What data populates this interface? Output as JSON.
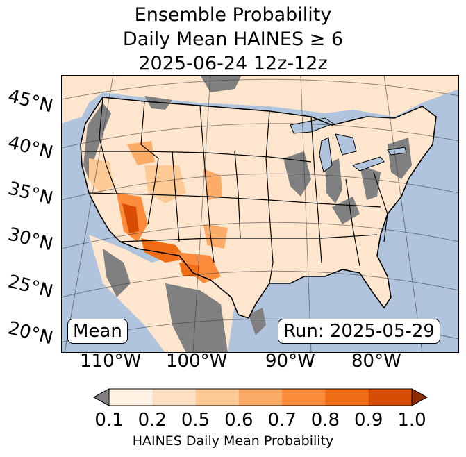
{
  "title": {
    "line1": "Ensemble Probability",
    "line2": "Daily Mean HAINES ≥ 6",
    "line3": "2025-06-24 12z-12z"
  },
  "lat_labels": [
    "45°N",
    "40°N",
    "35°N",
    "30°N",
    "25°N",
    "20°N"
  ],
  "lon_labels": [
    "110°W",
    "100°W",
    "90°W",
    "80°W"
  ],
  "stat_label": "Mean",
  "run_label": "Run: 2025-05-29",
  "colorbar": {
    "ticks": [
      "0.1",
      "0.2",
      "0.5",
      "0.6",
      "0.7",
      "0.8",
      "0.9",
      "1.0"
    ],
    "label": "HAINES Daily Mean Probability",
    "colors": [
      "#fff3e6",
      "#fee1c5",
      "#fdca96",
      "#fdac68",
      "#fc8c3c",
      "#f06d16",
      "#d84c04"
    ],
    "under_color": "#808080",
    "over_color": "#8c2d04"
  },
  "colors": {
    "ocean": "#b0c4de",
    "land_low": "#fee6ce",
    "missing": "#808080",
    "lake": "#b0c4de"
  }
}
